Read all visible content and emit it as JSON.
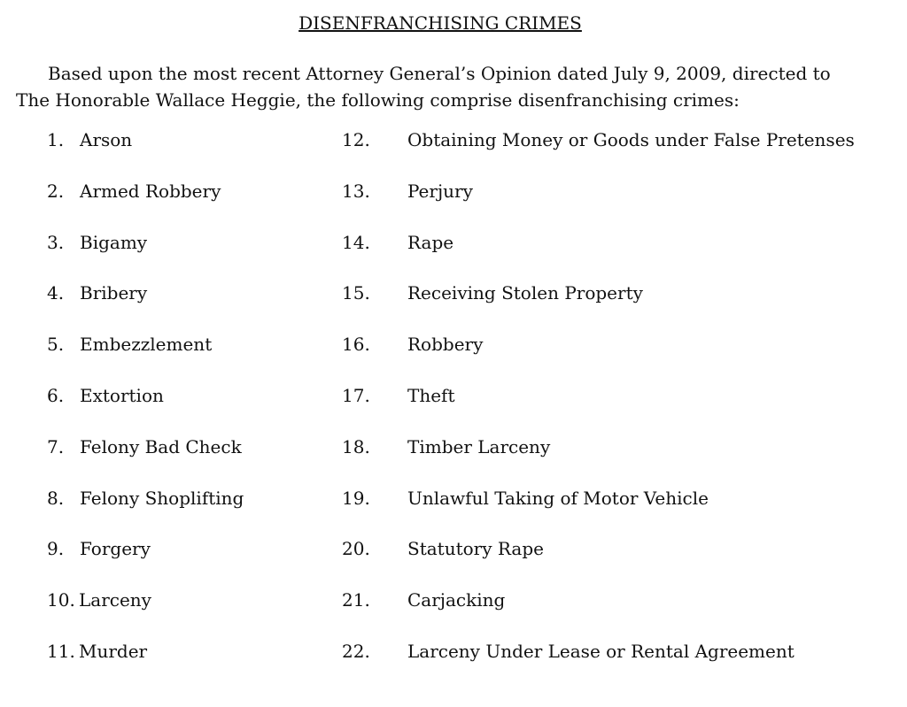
{
  "title": "DISENFRANCHISING CRIMES",
  "intro": [
    "Based upon the most recent Attorney General’s Opinion dated July 9, 2009, directed to",
    "The Honorable Wallace Heggie, the following comprise disenfranchising crimes:"
  ],
  "left": [
    {
      "n": "1.",
      "t": "Arson"
    },
    {
      "n": "2.",
      "t": "Armed Robbery"
    },
    {
      "n": "3.",
      "t": "Bigamy"
    },
    {
      "n": "4.",
      "t": "Bribery"
    },
    {
      "n": "5.",
      "t": "Embezzlement"
    },
    {
      "n": "6.",
      "t": "Extortion"
    },
    {
      "n": "7.",
      "t": "Felony Bad Check"
    },
    {
      "n": "8.",
      "t": "Felony Shoplifting"
    },
    {
      "n": "9.",
      "t": "Forgery"
    },
    {
      "n": "10.",
      "t": "Larceny"
    },
    {
      "n": "11.",
      "t": "Murder"
    }
  ],
  "right": [
    {
      "n": "12.",
      "t": "Obtaining Money or Goods under False Pretenses"
    },
    {
      "n": "13.",
      "t": "Perjury"
    },
    {
      "n": "14.",
      "t": "Rape"
    },
    {
      "n": "15.",
      "t": "Receiving Stolen Property"
    },
    {
      "n": "16.",
      "t": "Robbery"
    },
    {
      "n": "17.",
      "t": "Theft"
    },
    {
      "n": "18.",
      "t": "Timber Larceny"
    },
    {
      "n": "19.",
      "t": "Unlawful Taking of Motor Vehicle"
    },
    {
      "n": "20.",
      "t": "Statutory Rape"
    },
    {
      "n": "21.",
      "t": "Carjacking"
    },
    {
      "n": "22.",
      "t": "Larceny Under Lease or Rental Agreement"
    }
  ]
}
